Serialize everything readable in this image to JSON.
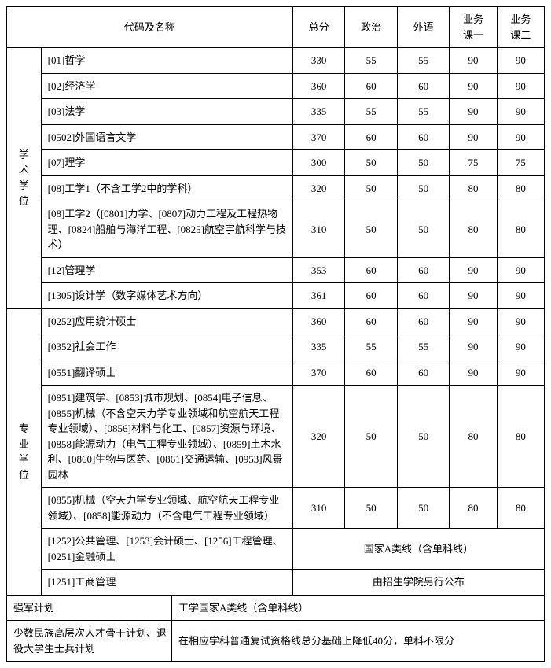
{
  "headers": {
    "code_name": "代码及名称",
    "total": "总分",
    "politics": "政治",
    "foreign": "外语",
    "course1": "业务课一",
    "course2": "业务课二"
  },
  "categories": {
    "academic": "学术学位",
    "professional": "专业学位"
  },
  "academic_rows": [
    {
      "name": "[01]哲学",
      "scores": [
        "330",
        "55",
        "55",
        "90",
        "90"
      ]
    },
    {
      "name": "[02]经济学",
      "scores": [
        "360",
        "60",
        "60",
        "90",
        "90"
      ]
    },
    {
      "name": "[03]法学",
      "scores": [
        "335",
        "55",
        "55",
        "90",
        "90"
      ]
    },
    {
      "name": "[0502]外国语言文学",
      "scores": [
        "370",
        "60",
        "60",
        "90",
        "90"
      ]
    },
    {
      "name": "[07]理学",
      "scores": [
        "300",
        "50",
        "50",
        "75",
        "75"
      ]
    },
    {
      "name": "[08]工学1（不含工学2中的学科）",
      "scores": [
        "320",
        "50",
        "50",
        "80",
        "80"
      ]
    },
    {
      "name": "[08]工学2（[0801]力学、[0807]动力工程及工程热物理、[0824]船舶与海洋工程、[0825]航空宇航科学与技术）",
      "scores": [
        "310",
        "50",
        "50",
        "80",
        "80"
      ]
    },
    {
      "name": "[12]管理学",
      "scores": [
        "353",
        "60",
        "60",
        "90",
        "90"
      ]
    },
    {
      "name": "[1305]设计学（数字媒体艺术方向）",
      "scores": [
        "361",
        "60",
        "60",
        "90",
        "90"
      ]
    }
  ],
  "professional_rows": [
    {
      "name": "[0252]应用统计硕士",
      "scores": [
        "360",
        "60",
        "60",
        "90",
        "90"
      ]
    },
    {
      "name": "[0352]社会工作",
      "scores": [
        "335",
        "55",
        "55",
        "90",
        "90"
      ]
    },
    {
      "name": "[0551]翻译硕士",
      "scores": [
        "370",
        "60",
        "60",
        "90",
        "90"
      ]
    },
    {
      "name": "[0851]建筑学、[0853]城市规划、[0854]电子信息、[0855]机械（不含空天力学专业领域和航空航天工程专业领域）、[0856]材料与化工、[0857]资源与环境、[0858]能源动力（电气工程专业领域）、[0859]土木水利、[0860]生物与医药、[0861]交通运输、[0953]风景园林",
      "scores": [
        "320",
        "50",
        "50",
        "80",
        "80"
      ]
    },
    {
      "name": "[0855]机械（空天力学专业领域、航空航天工程专业领域）、[0858]能源动力（不含电气工程专业领域）",
      "scores": [
        "310",
        "50",
        "50",
        "80",
        "80"
      ]
    }
  ],
  "special_rows": [
    {
      "name": "[1252]公共管理、[1253]会计硕士、[1256]工程管理、[0251]金融硕士",
      "note": "国家A类线（含单科线）"
    },
    {
      "name": "[1251]工商管理",
      "note": "由招生学院另行公布"
    }
  ],
  "footer_rows": [
    {
      "label": "强军计划",
      "note": "工学国家A类线（含单科线）"
    },
    {
      "label": "少数民族高层次人才骨干计划、退役大学生士兵计划",
      "note": "在相应学科普通复试资格线总分基础上降低40分，单科不限分"
    }
  ]
}
